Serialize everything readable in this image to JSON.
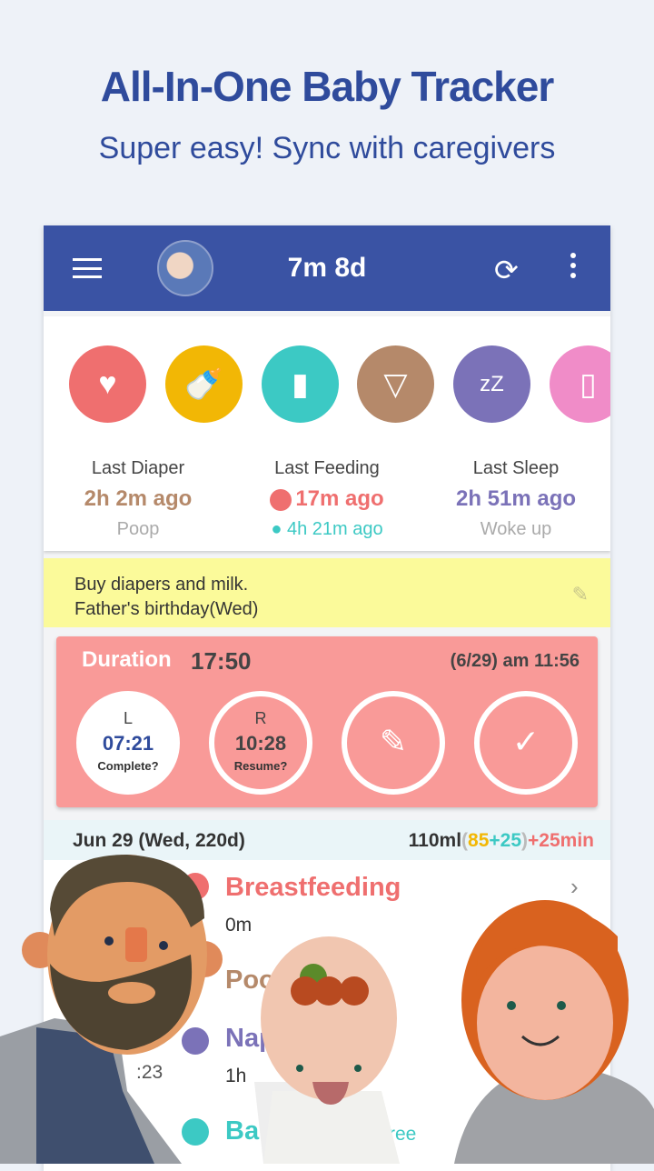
{
  "promo": {
    "title": "All-In-One Baby Tracker",
    "subtitle": "Super easy! Sync with caregivers"
  },
  "header": {
    "age": "7m 8d",
    "menu_icon": "hamburger-icon",
    "sync_icon": "sync-icon",
    "more_icon": "more-vert-icon"
  },
  "categories": [
    {
      "name": "breastfeeding",
      "color": "#ef6f6f"
    },
    {
      "name": "bottle",
      "color": "#f2b705"
    },
    {
      "name": "baby-food",
      "color": "#3cc9c4"
    },
    {
      "name": "diaper",
      "color": "#b5896a"
    },
    {
      "name": "sleep",
      "color": "#7b72b8"
    },
    {
      "name": "pumping",
      "color": "#f08cc8"
    }
  ],
  "summary": {
    "diaper": {
      "label": "Last Diaper",
      "value": "2h 2m ago",
      "sub": "Poop"
    },
    "feeding": {
      "label": "Last Feeding",
      "value": "17m ago",
      "sub": "4h 21m ago"
    },
    "sleep": {
      "label": "Last Sleep",
      "value": "2h 51m ago",
      "sub": "Woke up"
    }
  },
  "note": {
    "line1": "Buy diapers and milk.",
    "line2": "Father's birthday(Wed)"
  },
  "timer": {
    "duration_label": "Duration",
    "duration": "17:50",
    "started": "(6/29) am 11:56",
    "left": {
      "side": "L",
      "time": "07:21",
      "action": "Complete?"
    },
    "right": {
      "side": "R",
      "time": "10:28",
      "action": "Resume?"
    }
  },
  "day": {
    "date": "Jun 29 (Wed, 220d)",
    "total": "110ml",
    "open": "(",
    "a": "85",
    "plus1": "+",
    "b": "25",
    "close": ")",
    "plus2": "+",
    "min": "25min"
  },
  "events": [
    {
      "title": "Breastfeeding",
      "detail": "0m",
      "color": "#ef6f6f"
    },
    {
      "title": "Poop",
      "color": "#b5896a"
    },
    {
      "title": "Nap",
      "time": ":23",
      "detail": "1h",
      "color": "#7b72b8"
    },
    {
      "title": "Ba",
      "detail": "ree",
      "color": "#3cc9c4"
    }
  ]
}
